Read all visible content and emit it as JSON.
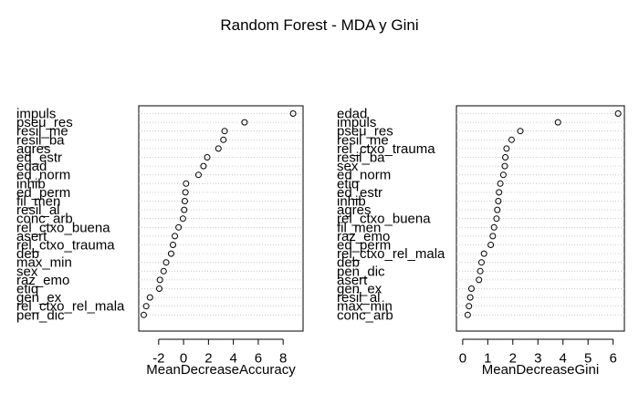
{
  "chart_data": {
    "title": "Random Forest - MDA y Gini",
    "panels": [
      {
        "type": "scatter",
        "xlabel": "MeanDecreaseAccuracy",
        "xlim": [
          -3.6,
          9.6
        ],
        "ticks": [
          -2,
          0,
          2,
          4,
          6,
          8
        ],
        "variables": [
          "impuls",
          "pseu_res",
          "resil_me",
          "resil_ba",
          "agres",
          "ed_estr",
          "edad",
          "ed_norm",
          "inhib",
          "ed_perm",
          "fil_men",
          "resil_al",
          "conc_arb",
          "rel_ctxo_buena",
          "asert",
          "rel_ctxo_trauma",
          "deb",
          "max_min",
          "sex",
          "raz_emo",
          "etiq",
          "gen_ex",
          "rel_ctxo_rel_mala",
          "pen_dic"
        ],
        "values": [
          8.8,
          4.9,
          3.3,
          3.2,
          2.8,
          1.9,
          1.6,
          1.2,
          0.2,
          0.15,
          0.1,
          0.05,
          -0.05,
          -0.4,
          -0.7,
          -0.85,
          -1.0,
          -1.4,
          -1.6,
          -1.9,
          -1.95,
          -2.7,
          -3.0,
          -3.2
        ]
      },
      {
        "type": "scatter",
        "xlabel": "MeanDecreaseGini",
        "xlim": [
          -0.25,
          6.45
        ],
        "ticks": [
          0,
          1,
          2,
          3,
          4,
          5,
          6
        ],
        "variables": [
          "edad",
          "impuls",
          "pseu_res",
          "resil_me",
          "rel_ctxo_trauma",
          "resil_ba",
          "sex",
          "ed_norm",
          "etiq",
          "ed_estr",
          "inhib",
          "agres",
          "rel_ctxo_buena",
          "fil_men",
          "raz_emo",
          "ed_perm",
          "rel_ctxo_rel_mala",
          "deb",
          "pen_dic",
          "asert",
          "gen_ex",
          "resil_al",
          "max_min",
          "conc_arb"
        ],
        "values": [
          6.2,
          3.8,
          2.3,
          1.95,
          1.75,
          1.7,
          1.68,
          1.62,
          1.5,
          1.45,
          1.42,
          1.38,
          1.35,
          1.25,
          1.2,
          1.12,
          0.85,
          0.75,
          0.7,
          0.65,
          0.35,
          0.3,
          0.25,
          0.2
        ]
      }
    ]
  }
}
